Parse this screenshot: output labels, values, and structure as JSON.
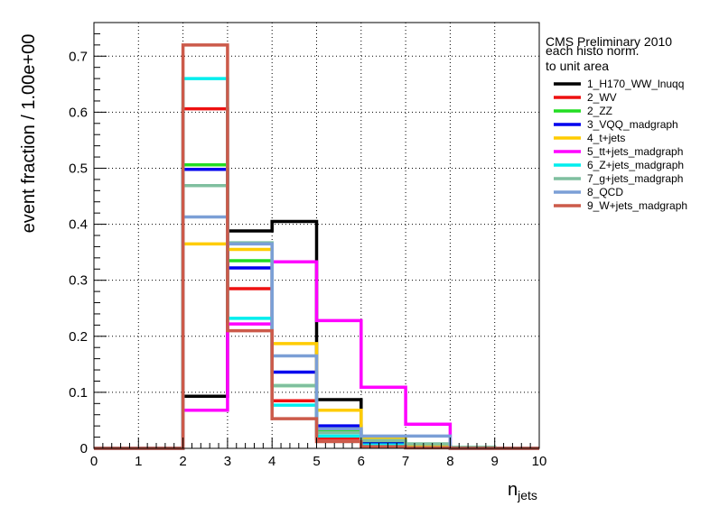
{
  "chart_data": {
    "type": "line",
    "ylabel": "event fraction / 1.00e+00",
    "xlabel_main": "n",
    "xlabel_sub": "jets",
    "xlim": [
      0,
      10
    ],
    "ylim": [
      0,
      0.76
    ],
    "x_ticks": [
      0,
      1,
      2,
      3,
      4,
      5,
      6,
      7,
      8,
      9,
      10
    ],
    "y_ticks": [
      0,
      0.1,
      0.2,
      0.3,
      0.4,
      0.5,
      0.6,
      0.7
    ],
    "y_tick_labels": [
      "0",
      "0.1",
      "0.2",
      "0.3",
      "0.4",
      "0.5",
      "0.6",
      "0.7"
    ],
    "grid": true,
    "legend_position": "top-right",
    "annotations": [
      "CMS Preliminary 2010",
      "each histo norm.",
      "to unit area"
    ],
    "bin_edges": [
      0,
      1,
      2,
      3,
      4,
      5,
      6,
      7,
      8,
      9,
      10
    ],
    "series": [
      {
        "name": "1_H170_WW_lnuqq",
        "color": "#000000",
        "values": [
          0,
          0,
          0.093,
          0.388,
          0.405,
          0.087,
          0.012,
          0.003,
          0.001,
          0
        ]
      },
      {
        "name": "2_WV",
        "color": "#ee1111",
        "values": [
          0,
          0,
          0.606,
          0.285,
          0.085,
          0.018,
          0.004,
          0.001,
          0,
          0
        ]
      },
      {
        "name": "2_ZZ",
        "color": "#22dd22",
        "values": [
          0,
          0,
          0.506,
          0.335,
          0.112,
          0.032,
          0.01,
          0.003,
          0.001,
          0
        ]
      },
      {
        "name": "3_VQQ_madgraph",
        "color": "#0000ee",
        "values": [
          0,
          0,
          0.498,
          0.322,
          0.136,
          0.04,
          0.008,
          0.002,
          0,
          0
        ]
      },
      {
        "name": "4_t+jets",
        "color": "#ffcc00",
        "values": [
          0,
          0,
          0.365,
          0.355,
          0.187,
          0.068,
          0.018,
          0.005,
          0.001,
          0
        ]
      },
      {
        "name": "5_tt+jets_madgraph",
        "color": "#ff00ff",
        "values": [
          0,
          0,
          0.068,
          0.222,
          0.333,
          0.228,
          0.109,
          0.043,
          0.001,
          0
        ]
      },
      {
        "name": "6_Z+jets_madgraph",
        "color": "#00eeee",
        "values": [
          0,
          0,
          0.66,
          0.232,
          0.077,
          0.022,
          0.006,
          0.001,
          0,
          0
        ]
      },
      {
        "name": "7_g+jets_madgraph",
        "color": "#7fbf9f",
        "values": [
          0,
          0,
          0.469,
          0.367,
          0.112,
          0.028,
          0.014,
          0.008,
          0.002,
          0
        ]
      },
      {
        "name": "8_QCD",
        "color": "#7b9fd6",
        "values": [
          0,
          0,
          0.413,
          0.365,
          0.165,
          0.035,
          0.022,
          0.022,
          0,
          0
        ]
      },
      {
        "name": "9_W+jets_madgraph",
        "color": "#cc5a4a",
        "values": [
          0,
          0,
          0.72,
          0.21,
          0.053,
          0.012,
          0.003,
          0.001,
          0,
          0
        ]
      }
    ]
  }
}
